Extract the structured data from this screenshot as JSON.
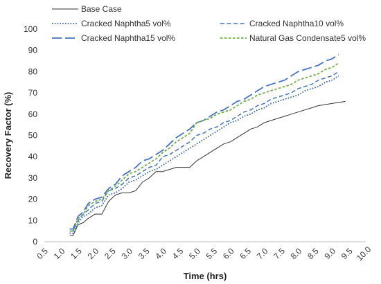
{
  "chart_data": {
    "type": "line",
    "title": "",
    "xlabel": "Time (hrs)",
    "ylabel": "Recovery Factor (%)",
    "xlim": [
      0.5,
      10.0
    ],
    "ylim": [
      0,
      100
    ],
    "x_ticks": [
      "0.5",
      "1.0",
      "1.5",
      "2.0",
      "2.5",
      "3.0",
      "3.5",
      "4.0",
      "4.5",
      "5.0",
      "5.5",
      "6.0",
      "6.5",
      "7.0",
      "7.5",
      "8.0",
      "8.5",
      "9.0",
      "9.5",
      "10.0"
    ],
    "y_ticks": [
      "0",
      "10",
      "20",
      "30",
      "40",
      "50",
      "60",
      "70",
      "80",
      "90",
      "100"
    ],
    "grid": false,
    "legend_position": "top",
    "series": [
      {
        "name": "Base Case",
        "color": "#333333",
        "dash": "solid",
        "x": [
          1.25,
          1.35,
          1.5,
          1.65,
          1.8,
          2.0,
          2.2,
          2.4,
          2.6,
          2.8,
          3.0,
          3.2,
          3.4,
          3.6,
          3.8,
          4.0,
          4.2,
          4.4,
          4.6,
          4.8,
          5.0,
          5.2,
          5.4,
          5.6,
          5.8,
          6.0,
          6.2,
          6.4,
          6.6,
          6.8,
          7.0,
          7.2,
          7.4,
          7.6,
          7.8,
          8.0,
          8.2,
          8.4,
          8.6,
          8.8,
          9.0,
          9.2,
          9.4
        ],
        "y": [
          3,
          3,
          8,
          9,
          11,
          13,
          13,
          19,
          22,
          23,
          23,
          24,
          28,
          30,
          33,
          33,
          34,
          35,
          35,
          35,
          38,
          40,
          42,
          44,
          46,
          47,
          49,
          51,
          53,
          54,
          56,
          57,
          58,
          59,
          60,
          61,
          62,
          63,
          64,
          64.5,
          65,
          65.5,
          66
        ]
      },
      {
        "name": "Cracked Naphtha5 vol%",
        "color": "#2e5fa8",
        "dash": "dotted",
        "x": [
          1.25,
          1.35,
          1.5,
          1.65,
          1.8,
          2.0,
          2.2,
          2.4,
          2.6,
          2.8,
          3.0,
          3.2,
          3.4,
          3.6,
          3.8,
          4.0,
          4.2,
          4.4,
          4.6,
          4.8,
          5.0,
          5.2,
          5.4,
          5.6,
          5.8,
          6.0,
          6.2,
          6.4,
          6.6,
          6.8,
          7.0,
          7.2,
          7.4,
          7.6,
          7.8,
          8.0,
          8.2,
          8.4,
          8.6,
          8.8,
          9.0,
          9.2
        ],
        "y": [
          4,
          4,
          9,
          12,
          13,
          16,
          17,
          22,
          23,
          25,
          28,
          29,
          31,
          33,
          34,
          36,
          38,
          40,
          42,
          44,
          46,
          48,
          50,
          52,
          54,
          56,
          57,
          59,
          60,
          62,
          63,
          65,
          66,
          67,
          68,
          69,
          71,
          72,
          73,
          75,
          76,
          78
        ]
      },
      {
        "name": "Cracked Naphtha10 vol%",
        "color": "#4472c4",
        "dash": "dashed",
        "x": [
          1.25,
          1.35,
          1.5,
          1.65,
          1.8,
          2.0,
          2.2,
          2.4,
          2.6,
          2.8,
          3.0,
          3.2,
          3.4,
          3.6,
          3.8,
          4.0,
          4.2,
          4.4,
          4.6,
          4.8,
          5.0,
          5.2,
          5.4,
          5.6,
          5.8,
          6.0,
          6.2,
          6.4,
          6.6,
          6.8,
          7.0,
          7.2,
          7.4,
          7.6,
          7.8,
          8.0,
          8.2,
          8.4,
          8.6,
          8.8,
          9.0,
          9.2
        ],
        "y": [
          5,
          5,
          10,
          13,
          15,
          18,
          19,
          24,
          25,
          27,
          30,
          31,
          33,
          35,
          36,
          40,
          41,
          43,
          45,
          47,
          50,
          51,
          53,
          54,
          56,
          57,
          59,
          61,
          62,
          64,
          65,
          67,
          68,
          69,
          70,
          72,
          73,
          74,
          76,
          77,
          78,
          80
        ]
      },
      {
        "name": "Cracked Naphtha15 vol%",
        "color": "#4472c4",
        "dash": "longdash",
        "x": [
          1.25,
          1.35,
          1.5,
          1.65,
          1.8,
          2.0,
          2.2,
          2.4,
          2.6,
          2.8,
          3.0,
          3.2,
          3.4,
          3.6,
          3.8,
          4.0,
          4.2,
          4.4,
          4.6,
          4.8,
          5.0,
          5.2,
          5.4,
          5.6,
          5.8,
          6.0,
          6.2,
          6.4,
          6.6,
          6.8,
          7.0,
          7.2,
          7.4,
          7.6,
          7.8,
          8.0,
          8.2,
          8.4,
          8.6,
          8.8,
          9.0,
          9.2
        ],
        "y": [
          6,
          6,
          12,
          14,
          18,
          20,
          21,
          25,
          27,
          31,
          33,
          35,
          38,
          39,
          41,
          43,
          46,
          49,
          51,
          53,
          56,
          57,
          59,
          61,
          62,
          64,
          66,
          67,
          69,
          71,
          73,
          74,
          75,
          76,
          78,
          80,
          81,
          82,
          83,
          85,
          86,
          88
        ]
      },
      {
        "name": "Natural Gas Condensate5 vol%",
        "color": "#70ad47",
        "dash": "dashed-fine",
        "x": [
          1.25,
          1.35,
          1.5,
          1.65,
          1.8,
          2.0,
          2.2,
          2.4,
          2.6,
          2.8,
          3.0,
          3.2,
          3.4,
          3.6,
          3.8,
          4.0,
          4.2,
          4.4,
          4.6,
          4.8,
          5.0,
          5.2,
          5.4,
          5.6,
          5.8,
          6.0,
          6.2,
          6.4,
          6.6,
          6.8,
          7.0,
          7.2,
          7.4,
          7.6,
          7.8,
          8.0,
          8.2,
          8.4,
          8.6,
          8.8,
          9.0,
          9.2
        ],
        "y": [
          5,
          5,
          11,
          13,
          17,
          19,
          20,
          24,
          26,
          29,
          32,
          33,
          35,
          37,
          39,
          42,
          44,
          47,
          49,
          51,
          56,
          57,
          58,
          60,
          61,
          62,
          64,
          66,
          67,
          69,
          70,
          71,
          72,
          73,
          74,
          76,
          77,
          78,
          79,
          81,
          82,
          84
        ]
      }
    ]
  }
}
